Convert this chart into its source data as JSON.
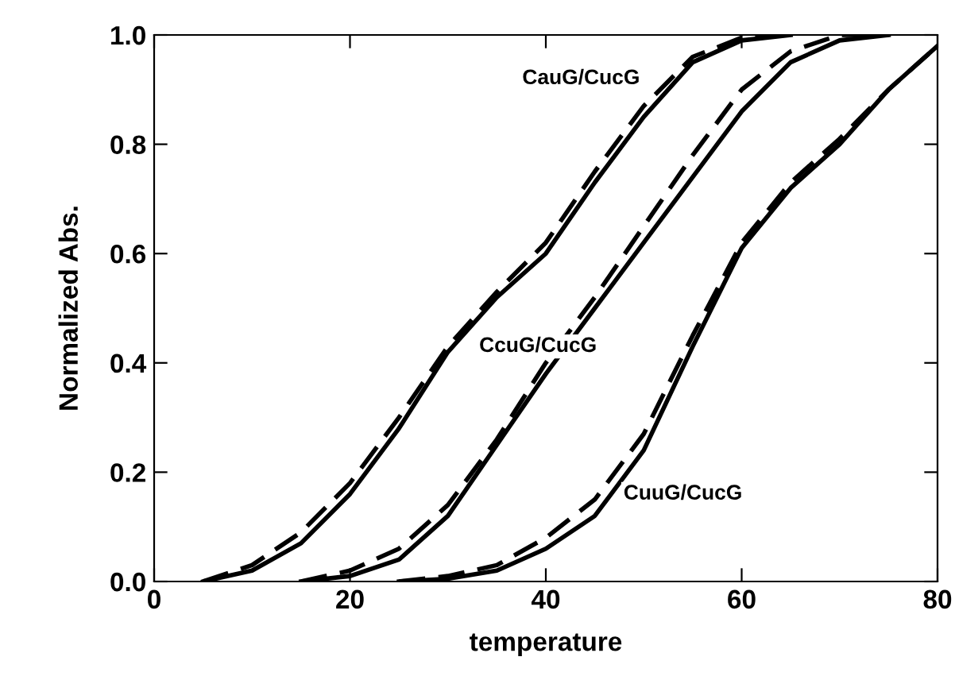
{
  "chart_data": {
    "type": "line",
    "xlabel": "temperature",
    "ylabel": "Normalized Abs.",
    "xlim": [
      0,
      80
    ],
    "ylim": [
      0,
      1
    ],
    "xticks": [
      0,
      20,
      40,
      60,
      80
    ],
    "yticks": [
      {
        "value": 0,
        "label": "0.0"
      },
      {
        "value": 0.2,
        "label": "0.2"
      },
      {
        "value": 0.4,
        "label": "0.4"
      },
      {
        "value": 0.6,
        "label": "0.6"
      },
      {
        "value": 0.8,
        "label": "0.8"
      },
      {
        "value": 1,
        "label": "1.0"
      }
    ],
    "grid": false,
    "legend": false,
    "marker": "none",
    "series": [
      {
        "color": "#000000",
        "line_style": "solid",
        "x": [
          5,
          10,
          15,
          20,
          25,
          30,
          35,
          40,
          45,
          50,
          55,
          60,
          65
        ],
        "values": [
          0.0,
          0.02,
          0.07,
          0.16,
          0.28,
          0.42,
          0.52,
          0.6,
          0.73,
          0.85,
          0.95,
          0.99,
          1.0
        ]
      },
      {
        "color": "#000000",
        "line_style": "dashed",
        "x": [
          5,
          10,
          15,
          20,
          25,
          30,
          35,
          40,
          45,
          50,
          55,
          60,
          65
        ],
        "values": [
          0.0,
          0.03,
          0.09,
          0.18,
          0.3,
          0.43,
          0.53,
          0.62,
          0.75,
          0.87,
          0.96,
          0.995,
          1.0
        ]
      },
      {
        "color": "#000000",
        "line_style": "solid",
        "x": [
          15,
          20,
          25,
          30,
          35,
          40,
          45,
          50,
          55,
          60,
          65,
          70,
          75
        ],
        "values": [
          0.0,
          0.01,
          0.04,
          0.12,
          0.25,
          0.38,
          0.5,
          0.62,
          0.74,
          0.86,
          0.95,
          0.99,
          1.0
        ]
      },
      {
        "color": "#000000",
        "line_style": "dashed",
        "x": [
          15,
          20,
          25,
          30,
          35,
          40,
          45,
          50,
          55,
          60,
          65,
          70,
          75
        ],
        "values": [
          0.0,
          0.02,
          0.06,
          0.14,
          0.26,
          0.4,
          0.52,
          0.65,
          0.78,
          0.9,
          0.97,
          1.0,
          1.0
        ]
      },
      {
        "color": "#000000",
        "line_style": "solid",
        "x": [
          25,
          30,
          35,
          40,
          45,
          50,
          55,
          60,
          65,
          70,
          75,
          80
        ],
        "values": [
          0.0,
          0.005,
          0.02,
          0.06,
          0.12,
          0.24,
          0.43,
          0.61,
          0.72,
          0.8,
          0.9,
          0.98
        ]
      },
      {
        "color": "#000000",
        "line_style": "dashed",
        "x": [
          25,
          30,
          35,
          40,
          45,
          50,
          55,
          60,
          65,
          70,
          75,
          80
        ],
        "values": [
          0.0,
          0.01,
          0.03,
          0.08,
          0.15,
          0.27,
          0.45,
          0.62,
          0.73,
          0.81,
          0.9,
          0.98
        ]
      }
    ],
    "annotations": [
      "CauG/CucG",
      "CcuG/CucG",
      "CuuG/CucG"
    ]
  }
}
